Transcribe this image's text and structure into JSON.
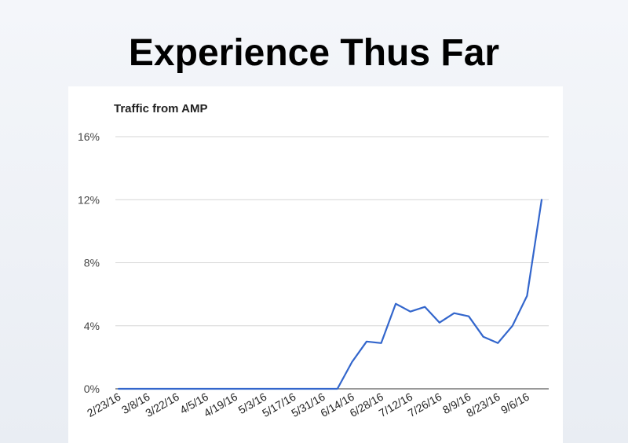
{
  "slide": {
    "title": "Experience Thus Far"
  },
  "colors": {
    "line": "#3366cc",
    "background": "#ffffff"
  },
  "chart_data": {
    "type": "line",
    "title": "Traffic from AMP",
    "xlabel": "",
    "ylabel": "",
    "ylim": [
      0,
      16
    ],
    "y_ticks": [
      0,
      4,
      8,
      12,
      16
    ],
    "y_tick_labels": [
      "0%",
      "4%",
      "8%",
      "12%",
      "16%"
    ],
    "x_tick_labels": [
      "2/23/16",
      "3/8/16",
      "3/22/16",
      "4/5/16",
      "4/19/16",
      "5/3/16",
      "5/17/16",
      "5/31/16",
      "6/14/16",
      "6/28/16",
      "7/12/16",
      "7/26/16",
      "8/9/16",
      "8/23/16",
      "9/6/16"
    ],
    "grid": true,
    "legend": "none",
    "x": [
      "2/23/16",
      "3/1/16",
      "3/8/16",
      "3/15/16",
      "3/22/16",
      "3/29/16",
      "4/5/16",
      "4/12/16",
      "4/19/16",
      "4/26/16",
      "5/3/16",
      "5/10/16",
      "5/17/16",
      "5/24/16",
      "5/31/16",
      "6/7/16",
      "6/14/16",
      "6/21/16",
      "6/28/16",
      "7/5/16",
      "7/12/16",
      "7/19/16",
      "7/26/16",
      "8/2/16",
      "8/9/16",
      "8/16/16",
      "8/23/16",
      "8/30/16",
      "9/6/16",
      "9/13/16"
    ],
    "series": [
      {
        "values": [
          0,
          0,
          0,
          0,
          0,
          0,
          0,
          0,
          0,
          0,
          0,
          0,
          0,
          0,
          0,
          0,
          1.7,
          3.0,
          2.9,
          5.4,
          4.9,
          5.2,
          4.2,
          4.8,
          4.6,
          3.3,
          2.9,
          4.0,
          5.9,
          12.0
        ]
      }
    ]
  }
}
